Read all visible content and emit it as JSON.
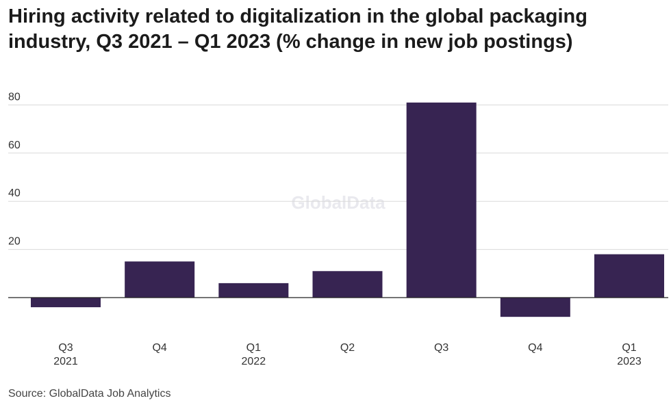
{
  "title": "Hiring activity related to digitalization in the global packaging industry, Q3 2021 – Q1 2023 (% change in new job postings)",
  "source": "Source: GlobalData Job Analytics",
  "watermark": "GlobalData",
  "colors": {
    "bar": "#372452",
    "grid": "#d9d9d9",
    "axis": "#222222"
  },
  "chart_data": {
    "type": "bar",
    "title": "Hiring activity related to digitalization in the global packaging industry, Q3 2021 – Q1 2023 (% change in new job postings)",
    "xlabel": "",
    "ylabel": "",
    "categories": [
      {
        "quarter": "Q3",
        "year": "2021"
      },
      {
        "quarter": "Q4",
        "year": ""
      },
      {
        "quarter": "Q1",
        "year": "2022"
      },
      {
        "quarter": "Q2",
        "year": ""
      },
      {
        "quarter": "Q3",
        "year": ""
      },
      {
        "quarter": "Q4",
        "year": ""
      },
      {
        "quarter": "Q1",
        "year": "2023"
      }
    ],
    "values": [
      -4,
      15,
      6,
      11,
      81,
      -8,
      18
    ],
    "yticks": [
      20,
      40,
      60,
      80
    ],
    "ylim": [
      -12,
      86
    ],
    "grid": true,
    "legend": "none"
  }
}
